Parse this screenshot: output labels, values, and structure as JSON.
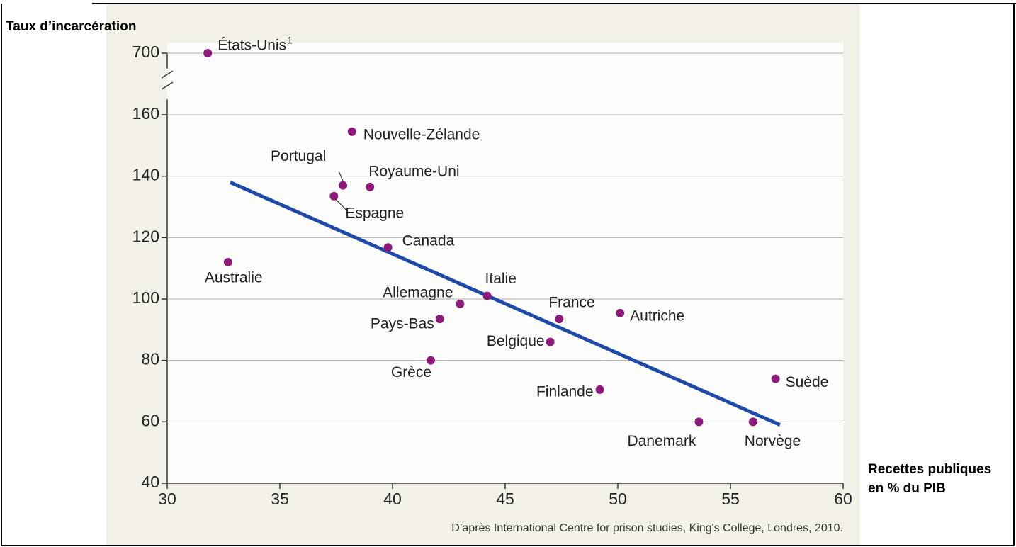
{
  "chart_data": {
    "type": "scatter",
    "y_label": "Taux d’incarcération",
    "x_label": [
      "Recettes publiques",
      "en % du PIB"
    ],
    "source": "D’après International Centre for prison studies, King's College, Londres, 2010.",
    "labels": [
      "États-Unis",
      "Australie",
      "Portugal",
      "Espagne",
      "Royaume-Uni",
      "Nouvelle-Zélande",
      "Canada",
      "Allemagne",
      "Pays-Bas",
      "Grèce",
      "Italie",
      "France",
      "Belgique",
      "Autriche",
      "Finlande",
      "Danemark",
      "Norvège",
      "Suède"
    ],
    "x": [
      31.8,
      32.7,
      37.8,
      37.4,
      39.0,
      38.2,
      39.8,
      43.0,
      42.1,
      41.7,
      44.2,
      47.4,
      47.0,
      50.1,
      49.2,
      53.6,
      56.0,
      57.0
    ],
    "values": [
      700,
      112,
      137,
      133.5,
      136.5,
      154.5,
      116.8,
      98.4,
      93.5,
      80,
      101,
      93.5,
      86,
      95.4,
      70.5,
      60,
      60,
      74
    ],
    "color": "#8b1a7a",
    "annotations": [
      {
        "point": 0,
        "text": "1"
      }
    ],
    "trend_line": {
      "x": [
        32.8,
        57.2
      ],
      "y": [
        138,
        59
      ],
      "color": "#1f4aa8"
    },
    "xlim": [
      30,
      60
    ],
    "xticks": [
      30,
      35,
      40,
      45,
      50,
      55,
      60
    ],
    "ylim": [
      40,
      700
    ],
    "yticks": [
      40,
      60,
      80,
      100,
      120,
      140,
      160,
      700
    ],
    "y_break": [
      165,
      695
    ],
    "grid": true
  }
}
